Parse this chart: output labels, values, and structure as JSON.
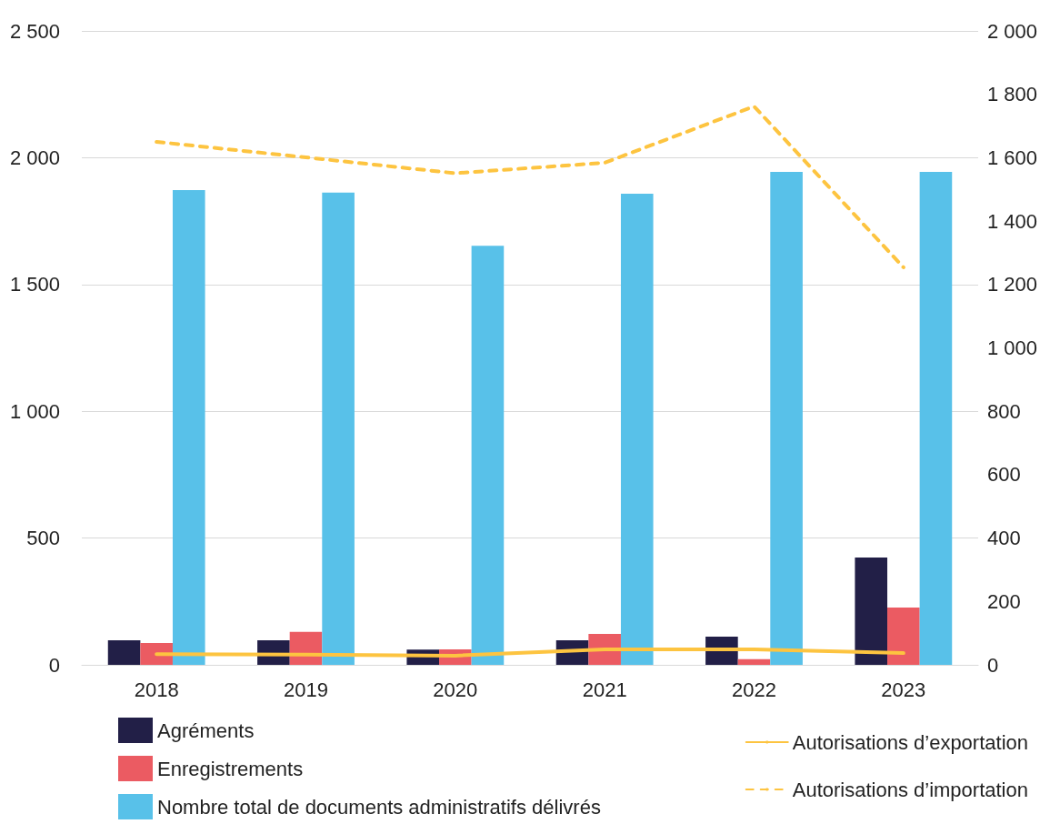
{
  "chart_data": {
    "type": "bar",
    "categories": [
      "2018",
      "2019",
      "2020",
      "2021",
      "2022",
      "2023"
    ],
    "series": [
      {
        "name": "Agréments",
        "color": "#221f47",
        "values": [
          97,
          97,
          60,
          97,
          111,
          423
        ]
      },
      {
        "name": "Enregistrements",
        "color": "#eb5b62",
        "values": [
          86,
          130,
          61,
          122,
          22,
          226
        ]
      },
      {
        "name": "Nombre total de documents administratifs délivrés",
        "color": "#58c1e9",
        "values": [
          1872,
          1862,
          1653,
          1858,
          1944,
          1944
        ]
      },
      {
        "name": "Autorisations d’exportation",
        "type": "line",
        "axis": "y2",
        "color": "#fdc440",
        "line_style": "solid",
        "values": [
          34,
          32,
          29,
          49,
          49,
          37
        ]
      },
      {
        "name": "Autorisations d’importation",
        "type": "line",
        "axis": "y2",
        "color": "#fdc440",
        "line_style": "dashed",
        "values": [
          1650,
          1601,
          1551,
          1584,
          1762,
          1254
        ]
      }
    ],
    "ylim": [
      0,
      2500
    ],
    "yticks": [
      0,
      500,
      1000,
      1500,
      2000,
      2500
    ],
    "y2lim": [
      0,
      2000
    ],
    "y2ticks": [
      0,
      200,
      400,
      600,
      800,
      1000,
      1200,
      1400,
      1600,
      1800,
      2000
    ],
    "grid": "y",
    "legend": "bottom",
    "marker": "none"
  }
}
